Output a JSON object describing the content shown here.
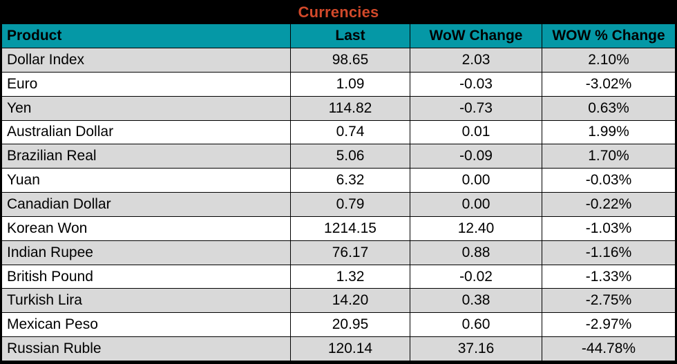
{
  "title": "Currencies",
  "colors": {
    "title_text": "#D2492A",
    "header_bg": "#0598A6",
    "header_text": "#000000",
    "row_even_bg": "#D9D9D9",
    "row_odd_bg": "#FFFFFF",
    "border": "#000000"
  },
  "chart_data": {
    "type": "table",
    "title": "Currencies",
    "columns": [
      "Product",
      "Last",
      "WoW Change",
      "WOW % Change"
    ],
    "rows": [
      [
        "Dollar Index",
        "98.65",
        "2.03",
        "2.10%"
      ],
      [
        "Euro",
        "1.09",
        "-0.03",
        "-3.02%"
      ],
      [
        "Yen",
        "114.82",
        "-0.73",
        "0.63%"
      ],
      [
        "Australian Dollar",
        "0.74",
        "0.01",
        "1.99%"
      ],
      [
        "Brazilian Real",
        "5.06",
        "-0.09",
        "1.70%"
      ],
      [
        "Yuan",
        "6.32",
        "0.00",
        "-0.03%"
      ],
      [
        "Canadian Dollar",
        "0.79",
        "0.00",
        "-0.22%"
      ],
      [
        "Korean Won",
        "1214.15",
        "12.40",
        "-1.03%"
      ],
      [
        "Indian Rupee",
        "76.17",
        "0.88",
        "-1.16%"
      ],
      [
        "British Pound",
        "1.32",
        "-0.02",
        "-1.33%"
      ],
      [
        "Turkish Lira",
        "14.20",
        "0.38",
        "-2.75%"
      ],
      [
        "Mexican Peso",
        "20.95",
        "0.60",
        "-2.97%"
      ],
      [
        "Russian Ruble",
        "120.14",
        "37.16",
        "-44.78%"
      ]
    ]
  }
}
